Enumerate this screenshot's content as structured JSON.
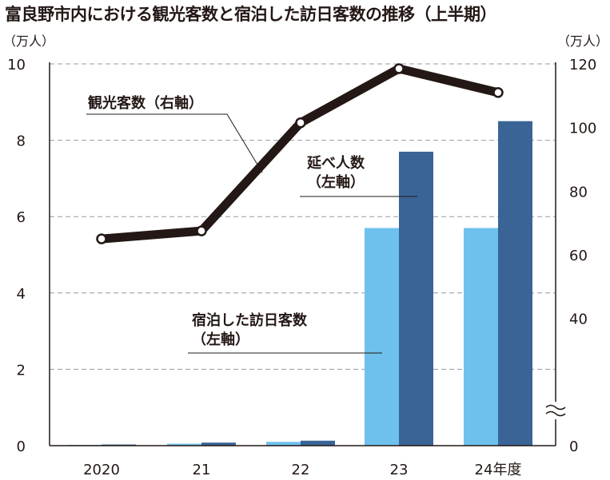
{
  "chart_data": {
    "type": "bar+line",
    "title": "富良野市内における観光客数と宿泊した訪日客数の推移（上半期）",
    "categories": [
      "2020",
      "21",
      "22",
      "23",
      "24年度"
    ],
    "left_axis": {
      "unit": "（万人）",
      "range": [
        0,
        10
      ],
      "ticks": [
        0,
        2,
        4,
        6,
        8,
        10
      ]
    },
    "right_axis": {
      "unit": "（万人）",
      "range": [
        0,
        120
      ],
      "ticks": [
        0,
        40,
        60,
        80,
        100,
        120
      ],
      "broken": true
    },
    "series": [
      {
        "name": "宿泊した訪日客数",
        "label": [
          "宿泊した訪日客数",
          "（左軸）"
        ],
        "type": "bar",
        "axis": "left",
        "color": "#6ec1ec",
        "values": [
          0.02,
          0.05,
          0.1,
          5.7,
          5.7
        ]
      },
      {
        "name": "延べ人数",
        "label": [
          "延べ人数",
          "（左軸）"
        ],
        "type": "bar",
        "axis": "left",
        "color": "#3a6496",
        "values": [
          0.03,
          0.08,
          0.13,
          7.7,
          8.5
        ]
      },
      {
        "name": "観光客数",
        "label": [
          "観光客数（右軸）"
        ],
        "type": "line",
        "axis": "right",
        "color": "#231815",
        "values": [
          65,
          67.5,
          101.5,
          118.5,
          111
        ]
      }
    ],
    "grid": true
  }
}
